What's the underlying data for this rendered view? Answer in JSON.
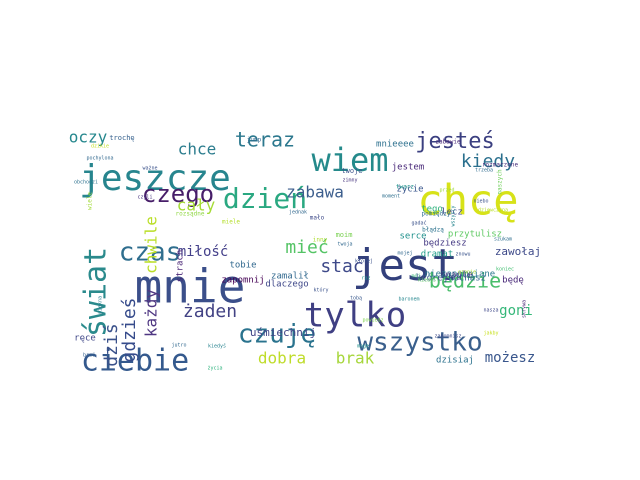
{
  "wordcloud": {
    "words": [
      {
        "text": "mnie",
        "color": "#3b4f8a"
      },
      {
        "text": "jest",
        "color": "#33407c"
      },
      {
        "text": "chcę",
        "color": "#d7e218"
      },
      {
        "text": "jeszcze",
        "color": "#27858e"
      },
      {
        "text": "świat",
        "color": "#2a8a8c"
      },
      {
        "text": "tylko",
        "color": "#3f3f83"
      },
      {
        "text": "wiem",
        "color": "#258a8b"
      },
      {
        "text": "ciebie",
        "color": "#34598d"
      },
      {
        "text": "dzień",
        "color": "#2aa881"
      },
      {
        "text": "czas",
        "color": "#2f6e8e"
      },
      {
        "text": "czego",
        "color": "#471e69"
      },
      {
        "text": "czuję",
        "color": "#2a738e"
      },
      {
        "text": "wszystko",
        "color": "#3a5f8c"
      },
      {
        "text": "jesteś",
        "color": "#3b3f80"
      },
      {
        "text": "będzie",
        "color": "#49bd6b"
      },
      {
        "text": "teraz",
        "color": "#2c788e"
      },
      {
        "text": "kiedy",
        "color": "#2b708e"
      },
      {
        "text": "zabawa",
        "color": "#3b5d8c"
      },
      {
        "text": "dobra",
        "color": "#bfdc2a"
      },
      {
        "text": "brak",
        "color": "#a6d63a"
      },
      {
        "text": "mieć",
        "color": "#55c466"
      },
      {
        "text": "stać",
        "color": "#3e4989"
      },
      {
        "text": "żaden",
        "color": "#424284"
      },
      {
        "text": "gdzieś",
        "color": "#364b8b"
      },
      {
        "text": "dziś",
        "color": "#3b528b"
      },
      {
        "text": "każdy",
        "color": "#4f3782"
      },
      {
        "text": "chwile",
        "color": "#bade28"
      },
      {
        "text": "oczy",
        "color": "#25878d"
      },
      {
        "text": "chce",
        "color": "#2c7d8e"
      },
      {
        "text": "cały",
        "color": "#a5db36"
      },
      {
        "text": "miłość",
        "color": "#44408a"
      },
      {
        "text": "goni",
        "color": "#35b779"
      },
      {
        "text": "możesz",
        "color": "#39568c"
      },
      {
        "text": "uśmiechnij",
        "color": "#414487"
      },
      {
        "text": "zawołaj",
        "color": "#3e4a89"
      },
      {
        "text": "zapomnij",
        "color": "#440154"
      },
      {
        "text": "tobie",
        "color": "#31688e"
      },
      {
        "text": "mnieeee",
        "color": "#2d708e"
      },
      {
        "text": "jestem",
        "color": "#482878"
      },
      {
        "text": "życie",
        "color": "#39568c"
      },
      {
        "text": "tego",
        "color": "#2db27d"
      },
      {
        "text": "serce",
        "color": "#21918c"
      },
      {
        "text": "będziesz",
        "color": "#443983"
      },
      {
        "text": "której",
        "color": "#3b528b"
      },
      {
        "text": "kochasz",
        "color": "#31688e"
      },
      {
        "text": "będę",
        "color": "#482878"
      },
      {
        "text": "dzisiaj",
        "color": "#2c728e"
      },
      {
        "text": "ręce",
        "color": "#3f4788"
      },
      {
        "text": "przytulisz",
        "color": "#5ec962"
      },
      {
        "text": "niezapomniane",
        "color": "#2a788e"
      },
      {
        "text": "lecz",
        "color": "#3e4989"
      },
      {
        "text": "nagle",
        "color": "#453781"
      },
      {
        "text": "dramat",
        "color": "#1f9e89"
      },
      {
        "text": "strach",
        "color": "#482475"
      },
      {
        "text": "dlaczego",
        "color": "#3f4889"
      },
      {
        "text": "zamalił",
        "color": "#31688e"
      },
      {
        "text": "twoje",
        "color": "#3b528b"
      },
      {
        "text": "moim",
        "color": "#7ad151"
      },
      {
        "text": "trochę",
        "color": "#35608d"
      },
      {
        "text": "mało",
        "color": "#3e4a89"
      },
      {
        "text": "jump",
        "color": "#31688e"
      },
      {
        "text": "zabawie",
        "color": "#482878"
      },
      {
        "text": "naszych",
        "color": "#6ece58"
      },
      {
        "text": "rozmarzone",
        "color": "#472d7b"
      },
      {
        "text": "twarz",
        "color": "#1f948c"
      },
      {
        "text": "pomiędzy",
        "color": "#2e6f8e"
      },
      {
        "text": "błądzą",
        "color": "#2c738e"
      },
      {
        "text": "miele",
        "color": "#b5de2b"
      },
      {
        "text": "rozsądne",
        "color": "#90d743"
      },
      {
        "text": "wiele",
        "color": "#a2da37"
      },
      {
        "text": "dzikie",
        "color": "#c2df23"
      },
      {
        "text": "pochylona",
        "color": "#31688e"
      },
      {
        "text": "ważne",
        "color": "#3b528b"
      },
      {
        "text": "obchodzi",
        "color": "#2d718e"
      },
      {
        "text": "czyli",
        "color": "#46327e"
      },
      {
        "text": "gadać",
        "color": "#3b528b"
      },
      {
        "text": "kiedyś",
        "color": "#26828e"
      },
      {
        "text": "życia",
        "color": "#2db27d"
      },
      {
        "text": "jutro",
        "color": "#31688e"
      },
      {
        "text": "brać",
        "color": "#355f8d"
      },
      {
        "text": "piękna",
        "color": "#287c8e"
      },
      {
        "text": "twoja",
        "color": "#31688e"
      },
      {
        "text": "tobą",
        "color": "#38588c"
      },
      {
        "text": "jakby",
        "color": "#c8e020"
      },
      {
        "text": "skrywa",
        "color": "#482878"
      },
      {
        "text": "wszyscy",
        "color": "#25858e"
      },
      {
        "text": "zapomnisz",
        "color": "#3e4a89"
      },
      {
        "text": "mogę",
        "color": "#21918c"
      },
      {
        "text": "powiedz",
        "color": "#7fd34e"
      },
      {
        "text": "szukam",
        "color": "#2e6e8e"
      },
      {
        "text": "baronem",
        "color": "#24868e"
      },
      {
        "text": "kiedyś",
        "color": "#5cc863"
      },
      {
        "text": "raz",
        "color": "#1f988b"
      },
      {
        "text": "znowu",
        "color": "#3a538b"
      },
      {
        "text": "granie",
        "color": "#a8db34"
      },
      {
        "text": "której",
        "color": "#3b528b"
      },
      {
        "text": "który",
        "color": "#3b528b"
      },
      {
        "text": "zimny",
        "color": "#46337e"
      },
      {
        "text": "jednak",
        "color": "#31688e"
      },
      {
        "text": "mój",
        "color": "#38b977"
      },
      {
        "text": "trzeba",
        "color": "#2f6b8e"
      },
      {
        "text": "niebo",
        "color": "#3b528b"
      },
      {
        "text": "przed",
        "color": "#a0da39"
      },
      {
        "text": "moment",
        "color": "#2e6f8e"
      },
      {
        "text": "dziewczyna",
        "color": "#b8de29"
      },
      {
        "text": "mojej",
        "color": "#31688e"
      },
      {
        "text": "nasza",
        "color": "#3f4889"
      },
      {
        "text": "koniec",
        "color": "#43bf71"
      },
      {
        "text": "inny",
        "color": "#addc30"
      }
    ]
  }
}
